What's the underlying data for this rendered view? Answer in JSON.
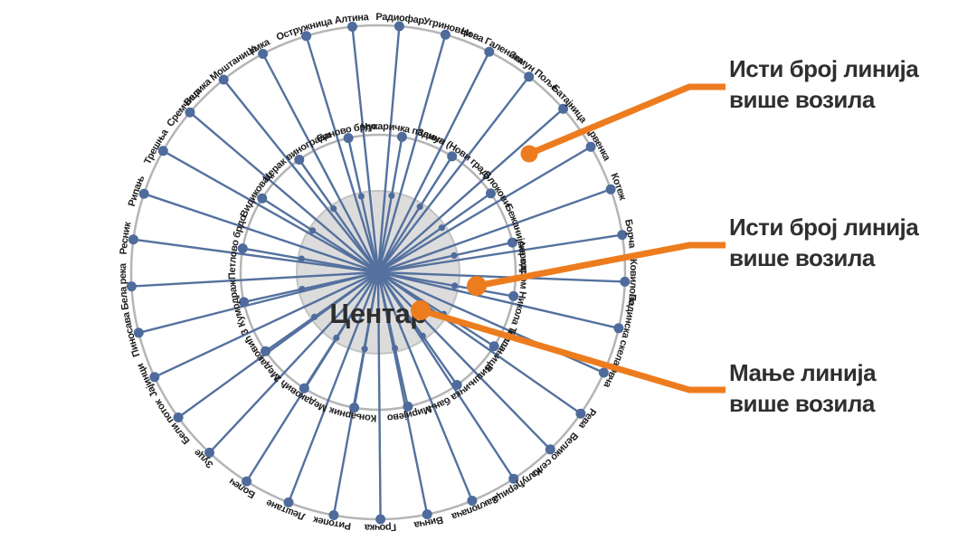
{
  "diagram": {
    "center_label": "Центар",
    "outer_nodes": [
      "Алтина",
      "Радиофар",
      "Угриновци",
      "Нова Галеника",
      "Земун Поље",
      "Батајница",
      "Црвенка",
      "Котеж",
      "Борча",
      "Ковилово",
      "Падинска скела",
      "Овча",
      "Рева",
      "Велико село",
      "Калуђерица",
      "Заклопача",
      "Винча",
      "Грочка",
      "Ритопек",
      "Лештане",
      "Болеч",
      "Зуце",
      "Бели поток",
      "Јајинци",
      "Пиносава",
      "Бела река",
      "Ресник",
      "Рипањ",
      "Трешња",
      "Сремчица",
      "Велика Моштаница",
      "Умка",
      "Остружница"
    ],
    "inner_nodes": [
      "Чукаричка падина",
      "Земун (Нови град)",
      "Блокови",
      "Бежанијска коса",
      "Аеродром Никола Тесла",
      "Вишњица",
      "Вишњичка бања",
      "Миријево",
      "Коњарник",
      "Медаковић 2",
      "Медаковић 3",
      "Кумодраж",
      "Петлово брдо",
      "Видиковац",
      "Церак виногради",
      "Баново брдо"
    ]
  },
  "annotations": [
    {
      "lines": [
        "Исти број линија",
        "више возила"
      ]
    },
    {
      "lines": [
        "Исти број линија",
        "више возила"
      ]
    },
    {
      "lines": [
        "Мање линија",
        "више возила"
      ]
    }
  ],
  "colors": {
    "spoke": "#54719e",
    "node": "#4e6b9c",
    "ring": "#b5b5b5",
    "center_fill": "#dcdcdc",
    "center_stroke": "#c3c3c3",
    "accent": "#ed7c1f",
    "ring_label": "#1d1d1d",
    "center_label": "#2d2d2d",
    "annotation_text": "#2f2f2f"
  }
}
